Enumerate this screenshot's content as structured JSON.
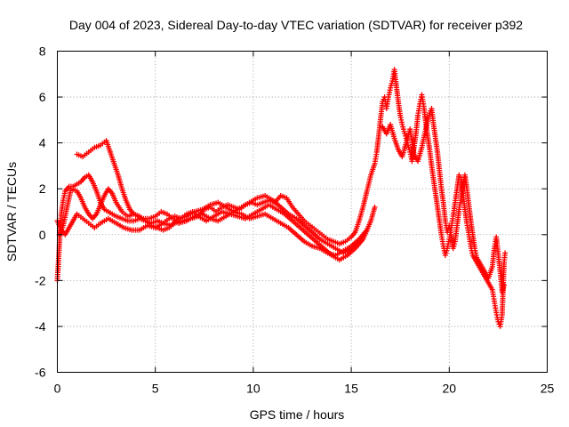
{
  "chart_data": {
    "type": "scatter",
    "title": "Day 004 of 2023, Sidereal Day-to-day VTEC variation (SDTVAR) for receiver p392",
    "xlabel": "GPS time / hours",
    "ylabel": "SDTVAR / TECUs",
    "xlim": [
      0,
      25
    ],
    "ylim": [
      -6,
      8
    ],
    "xticks": [
      "0",
      "5",
      "10",
      "15",
      "20",
      "25"
    ],
    "yticks": [
      "-6",
      "-4",
      "-2",
      "0",
      "2",
      "4",
      "6",
      "8"
    ],
    "grid": true,
    "marker": "plus",
    "series": [
      {
        "name": "SDTVAR",
        "color": "#ff0000",
        "points": [
          [
            0.0,
            -2.0
          ],
          [
            0.05,
            -1.3
          ],
          [
            0.1,
            -0.5
          ],
          [
            0.15,
            0.2
          ],
          [
            0.2,
            0.9
          ],
          [
            0.3,
            1.5
          ],
          [
            0.4,
            1.9
          ],
          [
            0.6,
            2.1
          ],
          [
            0.8,
            2.1
          ],
          [
            1.0,
            2.2
          ],
          [
            1.2,
            2.3
          ],
          [
            1.4,
            2.5
          ],
          [
            1.6,
            2.6
          ],
          [
            1.8,
            2.3
          ],
          [
            2.0,
            1.9
          ],
          [
            2.2,
            1.4
          ],
          [
            2.4,
            1.1
          ],
          [
            2.6,
            1.0
          ],
          [
            2.8,
            0.9
          ],
          [
            3.0,
            0.8
          ],
          [
            3.3,
            0.7
          ],
          [
            3.6,
            0.6
          ],
          [
            3.9,
            0.6
          ],
          [
            4.2,
            0.7
          ],
          [
            4.5,
            0.6
          ],
          [
            4.8,
            0.5
          ],
          [
            5.1,
            0.6
          ],
          [
            5.4,
            0.5
          ],
          [
            5.7,
            0.7
          ],
          [
            6.0,
            0.8
          ],
          [
            6.3,
            0.7
          ],
          [
            6.6,
            0.9
          ],
          [
            6.9,
            1.0
          ],
          [
            7.2,
            0.8
          ],
          [
            7.5,
            1.1
          ],
          [
            7.8,
            1.2
          ],
          [
            8.1,
            1.0
          ],
          [
            8.4,
            1.2
          ],
          [
            8.7,
            1.3
          ],
          [
            9.0,
            1.2
          ],
          [
            9.3,
            1.1
          ],
          [
            9.6,
            1.3
          ],
          [
            9.9,
            1.4
          ],
          [
            10.2,
            1.3
          ],
          [
            10.5,
            1.4
          ],
          [
            10.8,
            1.5
          ],
          [
            11.1,
            1.4
          ],
          [
            11.4,
            1.7
          ],
          [
            11.7,
            1.6
          ],
          [
            12.0,
            1.2
          ],
          [
            12.3,
            0.9
          ],
          [
            12.6,
            0.6
          ],
          [
            12.9,
            0.4
          ],
          [
            13.2,
            0.2
          ],
          [
            13.5,
            0.0
          ],
          [
            13.8,
            -0.2
          ],
          [
            14.1,
            -0.3
          ],
          [
            14.4,
            -0.4
          ],
          [
            14.7,
            -0.3
          ],
          [
            15.0,
            -0.1
          ],
          [
            15.2,
            0.1
          ],
          [
            15.4,
            0.6
          ],
          [
            15.6,
            1.2
          ],
          [
            15.8,
            1.9
          ],
          [
            16.0,
            2.6
          ],
          [
            16.2,
            3.1
          ],
          [
            16.3,
            3.6
          ],
          [
            16.4,
            4.3
          ],
          [
            16.5,
            5.1
          ],
          [
            16.6,
            5.8
          ],
          [
            16.7,
            6.0
          ],
          [
            16.8,
            5.5
          ],
          [
            16.9,
            6.0
          ],
          [
            17.0,
            6.4
          ],
          [
            17.1,
            6.7
          ],
          [
            17.2,
            7.2
          ],
          [
            17.3,
            6.5
          ],
          [
            17.4,
            5.8
          ],
          [
            17.5,
            5.2
          ],
          [
            17.6,
            4.8
          ],
          [
            17.7,
            4.5
          ],
          [
            17.8,
            4.2
          ],
          [
            17.9,
            3.9
          ],
          [
            18.0,
            3.6
          ],
          [
            18.1,
            3.2
          ],
          [
            18.2,
            3.8
          ],
          [
            18.3,
            4.4
          ],
          [
            18.4,
            5.2
          ],
          [
            18.5,
            5.7
          ],
          [
            18.6,
            6.1
          ],
          [
            18.7,
            5.6
          ],
          [
            18.8,
            4.9
          ],
          [
            18.9,
            4.3
          ],
          [
            19.0,
            3.7
          ],
          [
            19.1,
            3.0
          ],
          [
            19.2,
            2.4
          ],
          [
            19.3,
            1.8
          ],
          [
            19.4,
            1.2
          ],
          [
            19.5,
            0.6
          ],
          [
            19.6,
            0.0
          ],
          [
            19.7,
            -0.5
          ],
          [
            19.8,
            -0.9
          ],
          [
            19.9,
            -0.6
          ],
          [
            20.0,
            -0.2
          ],
          [
            20.1,
            0.3
          ],
          [
            20.2,
            0.8
          ],
          [
            20.3,
            1.4
          ],
          [
            20.4,
            2.0
          ],
          [
            20.5,
            2.6
          ],
          [
            20.6,
            2.5
          ],
          [
            20.7,
            1.8
          ],
          [
            20.8,
            1.1
          ],
          [
            20.9,
            0.5
          ],
          [
            21.0,
            0.0
          ],
          [
            21.1,
            -0.5
          ],
          [
            21.2,
            -0.9
          ],
          [
            21.4,
            -1.2
          ],
          [
            21.6,
            -1.5
          ],
          [
            21.8,
            -1.8
          ],
          [
            22.0,
            -2.1
          ],
          [
            22.2,
            -2.4
          ],
          [
            22.3,
            -2.9
          ],
          [
            22.4,
            -3.4
          ],
          [
            22.5,
            -3.8
          ],
          [
            22.6,
            -4.0
          ],
          [
            22.7,
            -3.5
          ],
          [
            22.8,
            -1.2
          ],
          [
            22.85,
            -0.8
          ],
          [
            0.1,
            0.0
          ],
          [
            0.3,
            0.4
          ],
          [
            0.5,
            1.2
          ],
          [
            0.7,
            2.0
          ],
          [
            1.0,
            1.9
          ],
          [
            1.2,
            1.6
          ],
          [
            1.4,
            1.2
          ],
          [
            1.6,
            0.9
          ],
          [
            1.8,
            0.7
          ],
          [
            2.0,
            0.9
          ],
          [
            2.2,
            1.3
          ],
          [
            2.4,
            1.7
          ],
          [
            2.6,
            2.0
          ],
          [
            2.8,
            1.8
          ],
          [
            3.0,
            1.4
          ],
          [
            3.3,
            1.0
          ],
          [
            3.6,
            0.8
          ],
          [
            3.9,
            0.9
          ],
          [
            4.2,
            0.8
          ],
          [
            4.5,
            0.6
          ],
          [
            4.8,
            0.4
          ],
          [
            5.1,
            0.3
          ],
          [
            5.4,
            0.2
          ],
          [
            5.7,
            0.3
          ],
          [
            6.0,
            0.5
          ],
          [
            6.4,
            0.6
          ],
          [
            6.8,
            0.7
          ],
          [
            7.2,
            0.8
          ],
          [
            7.6,
            0.6
          ],
          [
            8.0,
            0.8
          ],
          [
            8.4,
            1.0
          ],
          [
            8.8,
            0.9
          ],
          [
            9.2,
            0.8
          ],
          [
            9.6,
            0.7
          ],
          [
            10.0,
            0.9
          ],
          [
            10.4,
            1.1
          ],
          [
            10.8,
            1.3
          ],
          [
            11.2,
            1.1
          ],
          [
            11.6,
            0.9
          ],
          [
            12.0,
            0.6
          ],
          [
            12.4,
            0.3
          ],
          [
            12.8,
            0.0
          ],
          [
            13.2,
            -0.3
          ],
          [
            13.6,
            -0.6
          ],
          [
            14.0,
            -0.9
          ],
          [
            14.4,
            -1.1
          ],
          [
            14.8,
            -0.9
          ],
          [
            15.2,
            -0.6
          ],
          [
            15.6,
            -0.2
          ],
          [
            16.0,
            0.6
          ],
          [
            16.2,
            1.2
          ],
          [
            1.0,
            3.5
          ],
          [
            1.3,
            3.4
          ],
          [
            1.6,
            3.6
          ],
          [
            1.9,
            3.8
          ],
          [
            2.2,
            3.9
          ],
          [
            2.5,
            4.1
          ],
          [
            2.7,
            3.6
          ],
          [
            2.9,
            3.1
          ],
          [
            3.1,
            2.6
          ],
          [
            3.3,
            2.0
          ],
          [
            3.5,
            1.5
          ],
          [
            3.7,
            1.1
          ],
          [
            3.9,
            0.9
          ],
          [
            4.1,
            0.8
          ],
          [
            4.4,
            0.7
          ],
          [
            4.7,
            0.7
          ],
          [
            5.0,
            0.8
          ],
          [
            5.3,
            1.0
          ],
          [
            5.6,
            0.9
          ],
          [
            5.9,
            0.7
          ],
          [
            6.2,
            0.5
          ],
          [
            6.6,
            0.6
          ],
          [
            7.0,
            0.8
          ],
          [
            7.4,
            0.9
          ],
          [
            7.8,
            0.7
          ],
          [
            8.2,
            0.6
          ],
          [
            8.6,
            0.8
          ],
          [
            9.0,
            1.0
          ],
          [
            9.4,
            0.9
          ],
          [
            9.8,
            0.7
          ],
          [
            10.2,
            0.8
          ],
          [
            10.6,
            0.9
          ],
          [
            11.0,
            0.7
          ],
          [
            11.4,
            0.5
          ],
          [
            11.8,
            0.3
          ],
          [
            12.2,
            0.0
          ],
          [
            12.6,
            -0.3
          ],
          [
            13.0,
            -0.5
          ],
          [
            13.4,
            -0.6
          ],
          [
            13.8,
            -0.8
          ],
          [
            14.2,
            -0.9
          ],
          [
            14.6,
            -0.7
          ],
          [
            15.0,
            -0.5
          ],
          [
            15.4,
            -0.2
          ],
          [
            15.8,
            0.2
          ],
          [
            0.0,
            0.6
          ],
          [
            0.2,
            0.2
          ],
          [
            0.4,
            0.0
          ],
          [
            0.6,
            0.3
          ],
          [
            0.8,
            0.6
          ],
          [
            1.0,
            0.9
          ],
          [
            1.3,
            0.7
          ],
          [
            1.6,
            0.5
          ],
          [
            1.9,
            0.3
          ],
          [
            2.2,
            0.5
          ],
          [
            2.6,
            0.7
          ],
          [
            3.0,
            0.5
          ],
          [
            3.4,
            0.3
          ],
          [
            3.8,
            0.2
          ],
          [
            4.2,
            0.2
          ],
          [
            4.6,
            0.4
          ],
          [
            5.0,
            0.3
          ],
          [
            5.4,
            0.5
          ],
          [
            5.8,
            0.4
          ],
          [
            6.2,
            0.7
          ],
          [
            6.6,
            0.8
          ],
          [
            7.0,
            1.0
          ],
          [
            7.4,
            1.1
          ],
          [
            7.8,
            1.3
          ],
          [
            8.2,
            1.4
          ],
          [
            8.6,
            1.2
          ],
          [
            9.0,
            1.0
          ],
          [
            9.4,
            1.2
          ],
          [
            9.8,
            1.4
          ],
          [
            10.2,
            1.6
          ],
          [
            10.6,
            1.7
          ],
          [
            11.0,
            1.5
          ],
          [
            11.4,
            1.2
          ],
          [
            11.8,
            0.9
          ],
          [
            12.2,
            0.7
          ],
          [
            12.6,
            0.4
          ],
          [
            13.0,
            0.1
          ],
          [
            13.4,
            -0.2
          ],
          [
            13.8,
            -0.4
          ],
          [
            14.2,
            -0.6
          ],
          [
            14.6,
            -0.8
          ],
          [
            15.0,
            -0.6
          ],
          [
            15.4,
            -0.3
          ],
          [
            16.6,
            4.7
          ],
          [
            16.8,
            4.4
          ],
          [
            17.0,
            4.8
          ],
          [
            17.2,
            4.2
          ],
          [
            17.4,
            3.7
          ],
          [
            17.6,
            3.4
          ],
          [
            17.8,
            4.0
          ],
          [
            18.0,
            4.6
          ],
          [
            18.2,
            3.5
          ],
          [
            18.4,
            3.2
          ],
          [
            18.6,
            3.8
          ],
          [
            18.8,
            4.6
          ],
          [
            19.0,
            5.3
          ],
          [
            19.1,
            5.5
          ],
          [
            19.2,
            4.8
          ],
          [
            19.3,
            4.2
          ],
          [
            19.4,
            3.6
          ],
          [
            19.5,
            2.8
          ],
          [
            19.6,
            2.0
          ],
          [
            19.7,
            1.4
          ],
          [
            19.8,
            0.6
          ],
          [
            19.9,
            0.1
          ],
          [
            20.0,
            0.4
          ],
          [
            20.1,
            0.0
          ],
          [
            20.2,
            -0.6
          ],
          [
            20.3,
            -0.3
          ],
          [
            20.4,
            0.4
          ],
          [
            20.5,
            1.1
          ],
          [
            20.6,
            1.6
          ],
          [
            20.7,
            2.2
          ],
          [
            20.8,
            2.6
          ],
          [
            20.9,
            2.0
          ],
          [
            21.0,
            1.3
          ],
          [
            21.1,
            0.6
          ],
          [
            21.2,
            0.0
          ],
          [
            21.3,
            -0.6
          ],
          [
            21.4,
            -1.0
          ],
          [
            21.6,
            -1.3
          ],
          [
            21.8,
            -1.6
          ],
          [
            22.0,
            -1.9
          ],
          [
            22.2,
            -1.4
          ],
          [
            22.3,
            -0.6
          ],
          [
            22.4,
            -0.1
          ],
          [
            22.6,
            -1.6
          ],
          [
            22.7,
            -2.5
          ],
          [
            22.8,
            -2.2
          ]
        ]
      }
    ]
  }
}
